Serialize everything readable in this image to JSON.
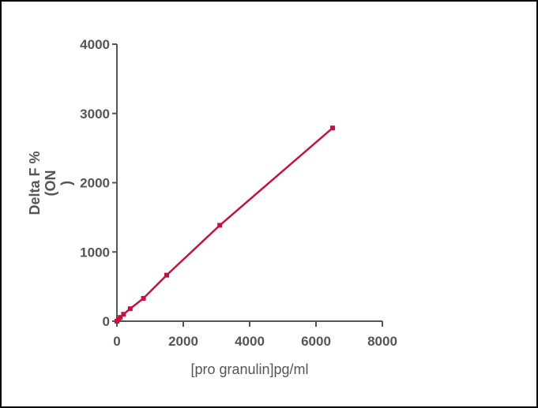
{
  "chart_data": {
    "type": "line",
    "title": "",
    "xlabel": "[pro granulin]pg/ml",
    "ylabel_lines": [
      "Delta F %",
      "(ON",
      ")"
    ],
    "xlim": [
      0,
      8000
    ],
    "ylim": [
      0,
      4000
    ],
    "xticks": [
      0,
      2000,
      4000,
      6000,
      8000
    ],
    "yticks": [
      0,
      1000,
      2000,
      3000,
      4000
    ],
    "xtick_labels": [
      "0",
      "2000",
      "4000",
      "6000",
      "8000"
    ],
    "ytick_labels": [
      "0",
      "1000",
      "2000",
      "3000",
      "4000"
    ],
    "grid": false,
    "legend": "none",
    "series": [
      {
        "color": "#c8103f",
        "x": [
          0,
          50,
          100,
          200,
          400,
          800,
          1500,
          3100,
          6500
        ],
        "y": [
          0,
          25,
          55,
          100,
          180,
          330,
          665,
          1385,
          2790
        ]
      }
    ]
  }
}
